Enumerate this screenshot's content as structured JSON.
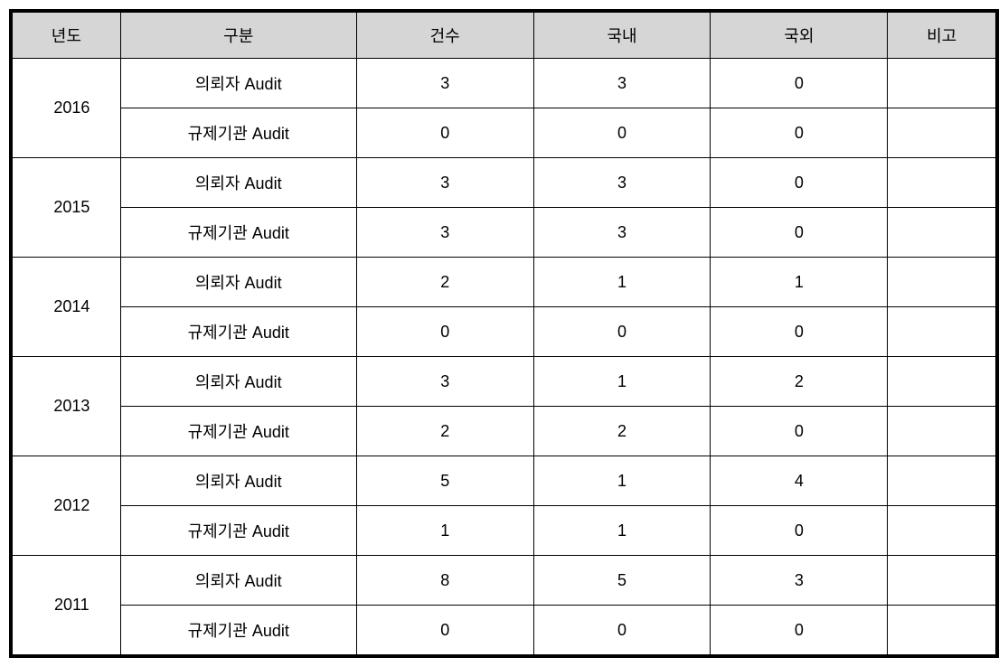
{
  "table": {
    "headers": {
      "year": "년도",
      "category": "구분",
      "count": "건수",
      "domestic": "국내",
      "foreign": "국외",
      "note": "비고"
    },
    "category_labels": {
      "client": "의뢰자 Audit",
      "regulatory": "규제기관 Audit"
    },
    "rows": [
      {
        "year": "2016",
        "category": "client",
        "count": "3",
        "domestic": "3",
        "foreign": "0",
        "note": ""
      },
      {
        "year": "2016",
        "category": "regulatory",
        "count": "0",
        "domestic": "0",
        "foreign": "0",
        "note": ""
      },
      {
        "year": "2015",
        "category": "client",
        "count": "3",
        "domestic": "3",
        "foreign": "0",
        "note": ""
      },
      {
        "year": "2015",
        "category": "regulatory",
        "count": "3",
        "domestic": "3",
        "foreign": "0",
        "note": ""
      },
      {
        "year": "2014",
        "category": "client",
        "count": "2",
        "domestic": "1",
        "foreign": "1",
        "note": ""
      },
      {
        "year": "2014",
        "category": "regulatory",
        "count": "0",
        "domestic": "0",
        "foreign": "0",
        "note": ""
      },
      {
        "year": "2013",
        "category": "client",
        "count": "3",
        "domestic": "1",
        "foreign": "2",
        "note": ""
      },
      {
        "year": "2013",
        "category": "regulatory",
        "count": "2",
        "domestic": "2",
        "foreign": "0",
        "note": ""
      },
      {
        "year": "2012",
        "category": "client",
        "count": "5",
        "domestic": "1",
        "foreign": "4",
        "note": ""
      },
      {
        "year": "2012",
        "category": "regulatory",
        "count": "1",
        "domestic": "1",
        "foreign": "0",
        "note": ""
      },
      {
        "year": "2011",
        "category": "client",
        "count": "8",
        "domestic": "5",
        "foreign": "3",
        "note": ""
      },
      {
        "year": "2011",
        "category": "regulatory",
        "count": "0",
        "domestic": "0",
        "foreign": "0",
        "note": ""
      }
    ],
    "styling": {
      "header_bg": "#d6d6d6",
      "border_color": "#000000",
      "outer_border_width": 3,
      "inner_border_width": 1,
      "font_size": 18,
      "text_color": "#000000",
      "cell_padding_v": 14,
      "column_widths": {
        "year": "11%",
        "category": "24%",
        "count": "18%",
        "domestic": "18%",
        "foreign": "18%",
        "note": "11%"
      }
    }
  }
}
